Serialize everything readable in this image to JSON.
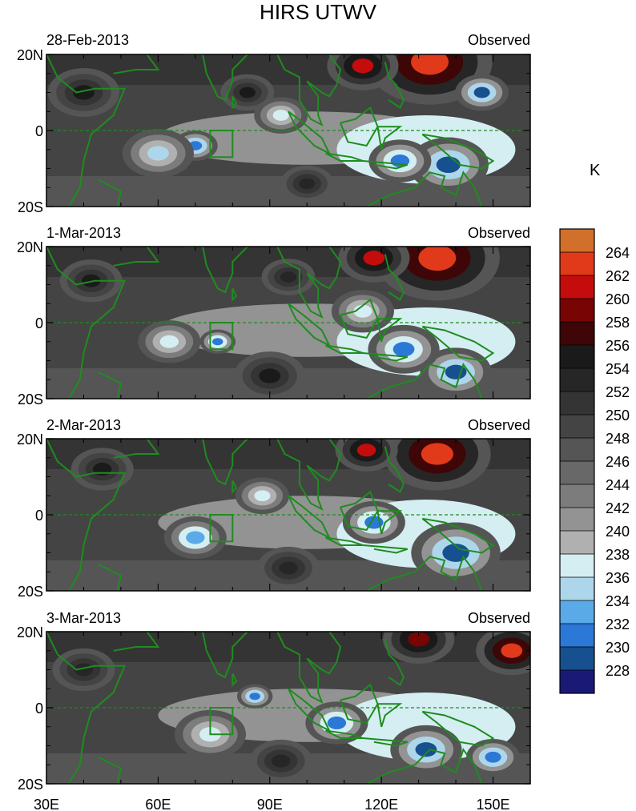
{
  "chart_data": {
    "type": "heatmap",
    "title": "HIRS UTWV",
    "colorbar": {
      "unit": "K",
      "levels": [
        264,
        262,
        260,
        258,
        256,
        254,
        252,
        250,
        248,
        246,
        244,
        242,
        240,
        238,
        236,
        234,
        232,
        230,
        228
      ],
      "colors": [
        "#d0702a",
        "#e03a1a",
        "#c40c0c",
        "#780404",
        "#3e0606",
        "#1a1a1a",
        "#262626",
        "#343434",
        "#444444",
        "#555555",
        "#686868",
        "#7c7c7c",
        "#939393",
        "#b0b0b0",
        "#d4eef2",
        "#aed6ea",
        "#5aaae8",
        "#2b78d6",
        "#17508e",
        "#1a1a76"
      ]
    },
    "x_axis": {
      "range": [
        30,
        160
      ],
      "ticks": [
        "30E",
        "60E",
        "90E",
        "120E",
        "150E"
      ],
      "tick_values": [
        30,
        60,
        90,
        120,
        150
      ]
    },
    "y_axis": {
      "range": [
        -20,
        20
      ],
      "ticks": [
        "20N",
        "0",
        "20S"
      ],
      "tick_values": [
        20,
        0,
        -20
      ]
    },
    "box_region": {
      "lon": [
        74,
        80
      ],
      "lat": [
        -7,
        0
      ]
    },
    "panels": [
      {
        "date": "28-Feb-2013",
        "tag": "Observed",
        "features": [
          {
            "lon": 133,
            "lat": 18,
            "value": 262,
            "r": 14
          },
          {
            "lon": 115,
            "lat": 17,
            "value": 260,
            "r": 8
          },
          {
            "lon": 147,
            "lat": 10,
            "value": 229,
            "r": 6
          },
          {
            "lon": 138,
            "lat": -9,
            "value": 229,
            "r": 9
          },
          {
            "lon": 125,
            "lat": -8,
            "value": 231,
            "r": 7
          },
          {
            "lon": 70,
            "lat": -4,
            "value": 230,
            "r": 5
          },
          {
            "lon": 60,
            "lat": -6,
            "value": 235,
            "r": 8
          },
          {
            "lon": 93,
            "lat": 4,
            "value": 236,
            "r": 6
          },
          {
            "lon": 40,
            "lat": 10,
            "value": 254,
            "r": 8
          },
          {
            "lon": 84,
            "lat": 10,
            "value": 254,
            "r": 6
          },
          {
            "lon": 100,
            "lat": -14,
            "value": 252,
            "r": 6
          }
        ]
      },
      {
        "date": "1-Mar-2013",
        "tag": "Observed",
        "features": [
          {
            "lon": 135,
            "lat": 17,
            "value": 262,
            "r": 14
          },
          {
            "lon": 118,
            "lat": 17,
            "value": 260,
            "r": 8
          },
          {
            "lon": 140,
            "lat": -13,
            "value": 228,
            "r": 8
          },
          {
            "lon": 126,
            "lat": -7,
            "value": 231,
            "r": 8
          },
          {
            "lon": 76,
            "lat": -5,
            "value": 231,
            "r": 4
          },
          {
            "lon": 63,
            "lat": -5,
            "value": 236,
            "r": 7
          },
          {
            "lon": 115,
            "lat": 3,
            "value": 236,
            "r": 7
          },
          {
            "lon": 42,
            "lat": 11,
            "value": 254,
            "r": 7
          },
          {
            "lon": 95,
            "lat": 12,
            "value": 252,
            "r": 6
          },
          {
            "lon": 90,
            "lat": -14,
            "value": 254,
            "r": 8
          }
        ]
      },
      {
        "date": "2-Mar-2013",
        "tag": "Observed",
        "features": [
          {
            "lon": 135,
            "lat": 16,
            "value": 262,
            "r": 12
          },
          {
            "lon": 116,
            "lat": 17,
            "value": 260,
            "r": 7
          },
          {
            "lon": 140,
            "lat": -10,
            "value": 228,
            "r": 10
          },
          {
            "lon": 118,
            "lat": -2,
            "value": 231,
            "r": 7
          },
          {
            "lon": 70,
            "lat": -6,
            "value": 232,
            "r": 7
          },
          {
            "lon": 88,
            "lat": 5,
            "value": 236,
            "r": 6
          },
          {
            "lon": 45,
            "lat": 12,
            "value": 254,
            "r": 7
          },
          {
            "lon": 95,
            "lat": -14,
            "value": 252,
            "r": 7
          }
        ]
      },
      {
        "date": "3-Mar-2013",
        "tag": "Observed",
        "features": [
          {
            "lon": 155,
            "lat": 15,
            "value": 262,
            "r": 8
          },
          {
            "lon": 130,
            "lat": 18,
            "value": 258,
            "r": 8
          },
          {
            "lon": 86,
            "lat": 3,
            "value": 230,
            "r": 4
          },
          {
            "lon": 108,
            "lat": -4,
            "value": 231,
            "r": 7
          },
          {
            "lon": 132,
            "lat": -11,
            "value": 229,
            "r": 8
          },
          {
            "lon": 150,
            "lat": -13,
            "value": 230,
            "r": 6
          },
          {
            "lon": 74,
            "lat": -7,
            "value": 236,
            "r": 8
          },
          {
            "lon": 40,
            "lat": 10,
            "value": 252,
            "r": 7
          },
          {
            "lon": 93,
            "lat": -14,
            "value": 252,
            "r": 7
          }
        ]
      }
    ]
  }
}
